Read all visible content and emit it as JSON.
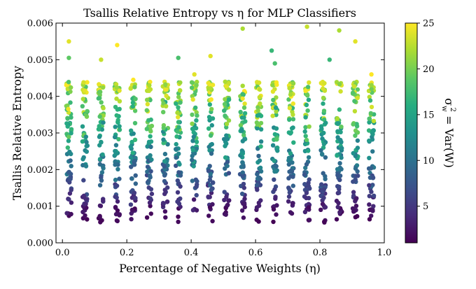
{
  "chart_data": {
    "type": "scatter",
    "title": "Tsallis Relative Entropy vs η for MLP Classifiers",
    "xlabel": "Percentage of Negative Weights (η)",
    "ylabel": "Tsallis Relative Entropy",
    "xlim": [
      -0.02,
      1.0
    ],
    "ylim": [
      0.0,
      0.006
    ],
    "x_ticks": [
      0.0,
      0.2,
      0.4,
      0.6,
      0.8,
      1.0
    ],
    "x_tick_labels": [
      "0.0",
      "0.2",
      "0.4",
      "0.6",
      "0.8",
      "1.0"
    ],
    "y_ticks": [
      0.0,
      0.001,
      0.002,
      0.003,
      0.004,
      0.005,
      0.006
    ],
    "y_tick_labels": [
      "0.000",
      "0.001",
      "0.002",
      "0.003",
      "0.004",
      "0.005",
      "0.006"
    ],
    "colorbar": {
      "label_base": "σ",
      "label_sub": "w",
      "label_sup": "2",
      "label_rest": " = Var(W)",
      "range": [
        1,
        25
      ],
      "ticks": [
        5,
        10,
        15,
        20,
        25
      ],
      "tick_labels": [
        "5",
        "10",
        "15",
        "20",
        "25"
      ],
      "colormap": "viridis"
    },
    "x_groups": [
      0.02,
      0.07,
      0.12,
      0.17,
      0.22,
      0.27,
      0.32,
      0.36,
      0.41,
      0.46,
      0.51,
      0.56,
      0.61,
      0.66,
      0.71,
      0.76,
      0.81,
      0.86,
      0.91,
      0.96
    ],
    "points_per_group": 60,
    "model": "entropy ≈ 0.0005 + 0.00016 · variance (± spread); approximate reconstruction of the visible point cloud",
    "extra_points": [
      {
        "x": 0.02,
        "y": 0.0055,
        "c": 24
      },
      {
        "x": 0.02,
        "y": 0.00505,
        "c": 19
      },
      {
        "x": 0.17,
        "y": 0.0054,
        "c": 25
      },
      {
        "x": 0.12,
        "y": 0.005,
        "c": 23
      },
      {
        "x": 0.36,
        "y": 0.00505,
        "c": 18
      },
      {
        "x": 0.46,
        "y": 0.0051,
        "c": 24
      },
      {
        "x": 0.56,
        "y": 0.00585,
        "c": 22
      },
      {
        "x": 0.65,
        "y": 0.00525,
        "c": 17
      },
      {
        "x": 0.66,
        "y": 0.0049,
        "c": 18
      },
      {
        "x": 0.76,
        "y": 0.0059,
        "c": 23
      },
      {
        "x": 0.83,
        "y": 0.005,
        "c": 17
      },
      {
        "x": 0.86,
        "y": 0.0058,
        "c": 22
      },
      {
        "x": 0.91,
        "y": 0.0055,
        "c": 24
      },
      {
        "x": 0.96,
        "y": 0.0046,
        "c": 25
      },
      {
        "x": 0.22,
        "y": 0.00445,
        "c": 25
      },
      {
        "x": 0.27,
        "y": 0.0043,
        "c": 22
      },
      {
        "x": 0.41,
        "y": 0.0046,
        "c": 24
      }
    ]
  }
}
